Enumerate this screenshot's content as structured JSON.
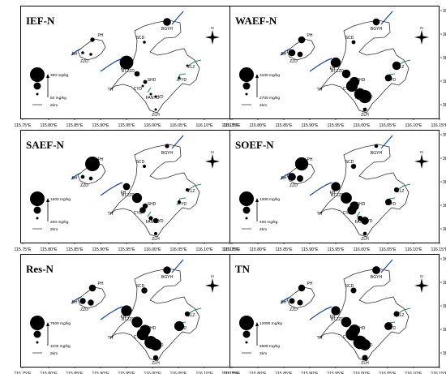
{
  "colors": {
    "river": "#1f4ea8",
    "green": "#2e8b57",
    "outline": "#333333",
    "circle": "#000000"
  },
  "axes": {
    "x_ticks": [
      "115.75°E",
      "115.80°E",
      "115.85°E",
      "115.90°E",
      "115.95°E",
      "116.00°E",
      "116.05°E",
      "116.10°E",
      "116.15°E"
    ],
    "y_ticks": [
      "39.00°N",
      "38.95°N",
      "38.90°N",
      "38.85°N",
      "38.80°N"
    ]
  },
  "north_label": "N",
  "scale_label": "2km",
  "sites": [
    "PH",
    "BH",
    "ZZD",
    "SCD",
    "BGYH",
    "FH",
    "BTZZD",
    "SHD",
    "ZLZ",
    "PYD",
    "ZLH",
    "TH",
    "CYD",
    "FANYD",
    "YD"
  ],
  "panels": [
    {
      "title": "IEF-N",
      "legend_max": "300 mg/kg",
      "legend_min": "50 mg/kg",
      "values": {
        "PH": 90,
        "BH": 60,
        "ZZD": 60,
        "SCD": 60,
        "BGYH": 160,
        "FH": 280,
        "BTZZD": 110,
        "SHD": 80,
        "ZLZ": 40,
        "PYD": 40,
        "ZLH": 40,
        "CYD": 40,
        "FANYD": 40,
        "YD": 40,
        "TH": 0
      }
    },
    {
      "title": "WAEF-N",
      "legend_max": "3100 mg/kg",
      "legend_min": "2700 mg/kg",
      "values": {
        "PH": 2850,
        "BH": 2850,
        "ZZD": 2800,
        "SCD": 2750,
        "BGYH": 2850,
        "FH": 2950,
        "BTZZD": 2900,
        "SHD": 2950,
        "ZLZ": 2900,
        "PYD": 2850,
        "ZLH": 2750,
        "CYD": 3000,
        "FANYD": 3000,
        "YD": 3050,
        "TH": 0
      }
    },
    {
      "title": "SAEF-N",
      "legend_max": "1500 mg/kg",
      "legend_min": "200 mg/kg",
      "values": {
        "PH": 1500,
        "BH": 350,
        "ZZD": 350,
        "SCD": 300,
        "BGYH": 400,
        "FH": 700,
        "BTZZD": 1000,
        "SHD": 500,
        "ZLZ": 300,
        "PYD": 300,
        "ZLH": 300,
        "CYD": 600,
        "FANYD": 400,
        "YD": 500,
        "TH": 0
      }
    },
    {
      "title": "SOEF-N",
      "legend_max": "1300 mg/kg",
      "legend_min": "400 mg/kg",
      "values": {
        "PH": 1200,
        "BH": 800,
        "ZZD": 700,
        "SCD": 600,
        "BGYH": 500,
        "FH": 900,
        "BTZZD": 1050,
        "SHD": 900,
        "ZLZ": 600,
        "PYD": 700,
        "ZLH": 500,
        "CYD": 900,
        "FANYD": 600,
        "YD": 800,
        "TH": 0
      }
    },
    {
      "title": "Res-N",
      "legend_max": "7500 mg/kg",
      "legend_min": "1100 mg/kg",
      "values": {
        "PH": 3500,
        "BH": 3000,
        "ZZD": 3000,
        "SCD": 3000,
        "BGYH": 3800,
        "FH": 5500,
        "BTZZD": 5500,
        "SHD": 5500,
        "ZLZ": 2500,
        "PYD": 5000,
        "ZLH": 2500,
        "CYD": 6000,
        "FANYD": 6500,
        "YD": 6000,
        "TH": 0
      }
    },
    {
      "title": "TN",
      "legend_max": "12000 mg/kg",
      "legend_min": "6500 mg/kg",
      "values": {
        "PH": 8500,
        "BH": 8000,
        "ZZD": 8000,
        "SCD": 8000,
        "BGYH": 9000,
        "FH": 9500,
        "BTZZD": 10000,
        "SHD": 10500,
        "ZLZ": 8000,
        "PYD": 9000,
        "ZLH": 8000,
        "CYD": 11000,
        "FANYD": 11500,
        "YD": 10500,
        "TH": 0
      }
    }
  ]
}
